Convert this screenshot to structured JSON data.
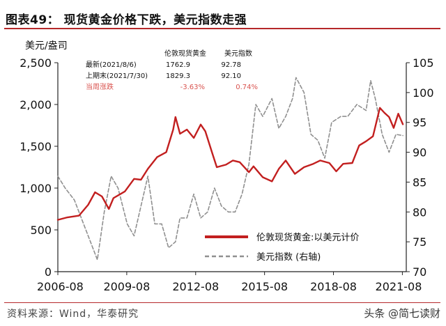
{
  "header": {
    "title": "图表49：   现货黄金价格下跌，美元指数走强"
  },
  "footer": {
    "source": "资料来源：Wind，华泰研究",
    "watermark": "头条 @简七读财"
  },
  "colors": {
    "gold_line": "#c21f1f",
    "dxy_line": "#8f8f8f",
    "accent_rule": "#b5282a",
    "change_text": "#d9534f"
  },
  "chart_data": {
    "type": "line",
    "y_left_unit": "美元/盎司",
    "ylim_left": [
      0,
      2500
    ],
    "yticks_left": [
      0,
      500,
      1000,
      1500,
      2000,
      2500
    ],
    "ytick_labels_left": [
      "0",
      "500",
      "1,000",
      "1,500",
      "2,000",
      "2,500"
    ],
    "ylim_right": [
      70,
      105
    ],
    "yticks_right": [
      70,
      75,
      80,
      85,
      90,
      95,
      100,
      105
    ],
    "xlim": [
      2006.58,
      2021.75
    ],
    "xticks": [
      2006.58,
      2009.58,
      2012.58,
      2015.58,
      2018.58,
      2021.58
    ],
    "xtick_labels": [
      "2006-08",
      "2009-08",
      "2012-08",
      "2015-08",
      "2018-08",
      "2021-08"
    ],
    "grid": false,
    "legend_position": "bottom-right",
    "series": [
      {
        "name": "伦敦现货黄金:以美元计价",
        "axis": "left",
        "x": [
          2006.58,
          2007.0,
          2007.5,
          2007.9,
          2008.2,
          2008.5,
          2008.8,
          2009.0,
          2009.5,
          2009.9,
          2010.2,
          2010.5,
          2010.9,
          2011.3,
          2011.6,
          2011.7,
          2011.9,
          2012.2,
          2012.5,
          2012.8,
          2013.0,
          2013.3,
          2013.5,
          2013.9,
          2014.2,
          2014.5,
          2014.9,
          2015.1,
          2015.5,
          2015.9,
          2016.2,
          2016.5,
          2016.9,
          2017.3,
          2017.7,
          2018.0,
          2018.4,
          2018.7,
          2019.0,
          2019.4,
          2019.7,
          2020.0,
          2020.3,
          2020.6,
          2020.8,
          2021.0,
          2021.2,
          2021.4,
          2021.6
        ],
        "y": [
          620,
          650,
          670,
          800,
          950,
          900,
          750,
          880,
          960,
          1110,
          1100,
          1230,
          1370,
          1430,
          1700,
          1850,
          1650,
          1700,
          1600,
          1760,
          1680,
          1420,
          1250,
          1280,
          1330,
          1310,
          1190,
          1260,
          1130,
          1080,
          1230,
          1330,
          1170,
          1250,
          1290,
          1330,
          1300,
          1200,
          1290,
          1300,
          1510,
          1560,
          1620,
          1960,
          1900,
          1850,
          1720,
          1890,
          1763
        ]
      },
      {
        "name": "美元指数 (右轴)",
        "axis": "right",
        "x": [
          2006.58,
          2006.9,
          2007.3,
          2007.7,
          2008.0,
          2008.3,
          2008.6,
          2008.9,
          2009.2,
          2009.6,
          2009.9,
          2010.2,
          2010.5,
          2010.8,
          2011.1,
          2011.4,
          2011.7,
          2011.9,
          2012.2,
          2012.5,
          2012.8,
          2013.1,
          2013.4,
          2013.7,
          2014.0,
          2014.3,
          2014.6,
          2014.9,
          2015.2,
          2015.5,
          2015.9,
          2016.2,
          2016.5,
          2016.8,
          2016.95,
          2017.3,
          2017.6,
          2017.9,
          2018.2,
          2018.5,
          2018.9,
          2019.2,
          2019.6,
          2020.0,
          2020.2,
          2020.4,
          2020.7,
          2021.0,
          2021.3,
          2021.6
        ],
        "y": [
          86,
          84,
          82,
          78,
          75,
          72,
          80,
          86,
          84,
          78,
          76,
          81,
          86,
          78,
          78,
          74,
          75,
          79,
          79,
          83,
          79,
          80,
          84,
          81,
          80,
          80,
          83,
          88,
          98,
          96,
          99,
          94,
          96,
          99,
          102.5,
          100,
          93,
          92,
          89,
          95,
          96,
          96,
          98,
          97,
          102,
          99,
          93,
          90,
          93,
          92.8
        ]
      }
    ],
    "info_table": {
      "header": [
        "伦敦现货黄金",
        "美元指数"
      ],
      "rows": [
        {
          "label": "最新(2021/8/6)",
          "values": [
            "1762.9",
            "92.78"
          ]
        },
        {
          "label": "上期末(2021/7/30)",
          "values": [
            "1829.3",
            "92.10"
          ]
        },
        {
          "label": "当周涨跌",
          "values": [
            "-3.63%",
            "0.74%"
          ]
        }
      ]
    }
  }
}
